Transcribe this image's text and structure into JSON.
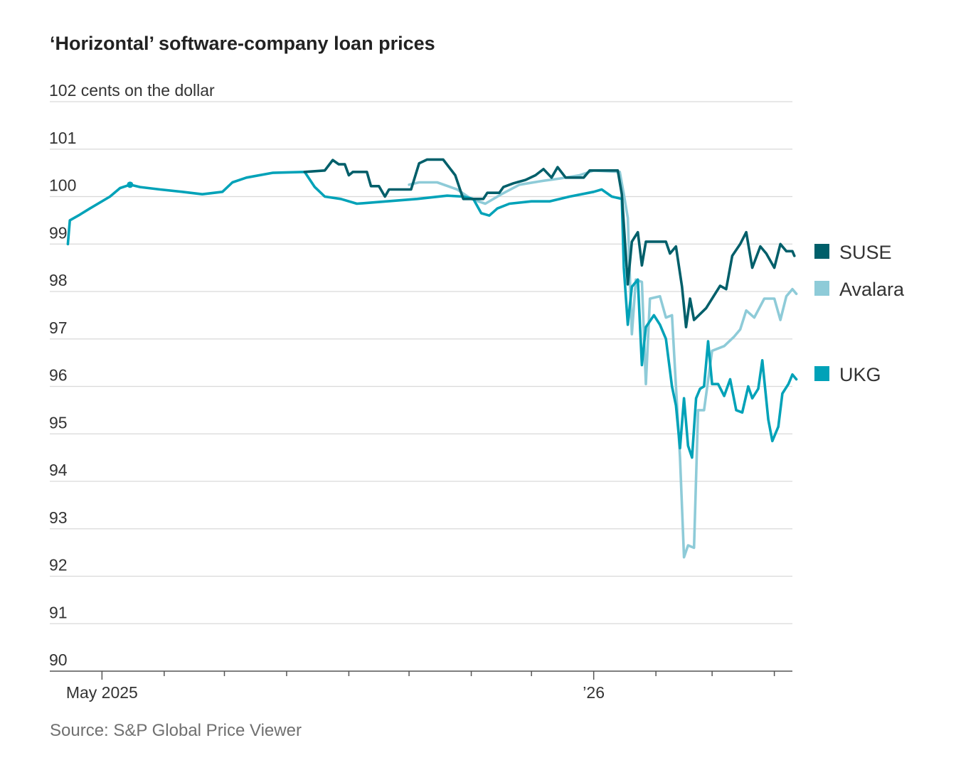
{
  "title": "‘Horizontal’ software-company loan prices",
  "source": "Source: S&P Global Price Viewer",
  "chart_data": {
    "type": "line",
    "title": "‘Horizontal’ software-company loan prices",
    "ylabel": "cents on the dollar",
    "ylim": [
      90,
      102
    ],
    "y_ticks": [
      90,
      91,
      92,
      93,
      94,
      95,
      96,
      97,
      98,
      99,
      100,
      101,
      102
    ],
    "top_tick_label": "102 cents on the dollar",
    "x_tick_labels": [
      {
        "label": "May 2025",
        "x": "2025-05-01"
      },
      {
        "label": "’26",
        "x": "2026-01-01"
      }
    ],
    "x_minor_ticks": [
      "2025-06-01",
      "2025-07-01",
      "2025-08-01",
      "2025-09-01",
      "2025-10-01",
      "2025-11-01",
      "2025-12-01",
      "2026-02-01",
      "2026-03-01",
      "2026-04-01"
    ],
    "xlim": [
      "2025-04-05",
      "2026-04-10"
    ],
    "grid": true,
    "legend_position": "right",
    "series": [
      {
        "name": "SUSE",
        "color": "#005f6a",
        "points": [
          [
            "2025-08-10",
            100.52
          ],
          [
            "2025-08-20",
            100.55
          ],
          [
            "2025-08-24",
            100.77
          ],
          [
            "2025-08-27",
            100.68
          ],
          [
            "2025-08-30",
            100.68
          ],
          [
            "2025-09-01",
            100.45
          ],
          [
            "2025-09-03",
            100.52
          ],
          [
            "2025-09-10",
            100.52
          ],
          [
            "2025-09-12",
            100.22
          ],
          [
            "2025-09-16",
            100.22
          ],
          [
            "2025-09-19",
            100.0
          ],
          [
            "2025-09-21",
            100.15
          ],
          [
            "2025-10-02",
            100.15
          ],
          [
            "2025-10-06",
            100.7
          ],
          [
            "2025-10-10",
            100.78
          ],
          [
            "2025-10-18",
            100.78
          ],
          [
            "2025-10-24",
            100.45
          ],
          [
            "2025-10-28",
            99.95
          ],
          [
            "2025-11-07",
            99.95
          ],
          [
            "2025-11-09",
            100.08
          ],
          [
            "2025-11-15",
            100.08
          ],
          [
            "2025-11-17",
            100.2
          ],
          [
            "2025-11-22",
            100.28
          ],
          [
            "2025-11-28",
            100.35
          ],
          [
            "2025-12-03",
            100.45
          ],
          [
            "2025-12-07",
            100.58
          ],
          [
            "2025-12-11",
            100.4
          ],
          [
            "2025-12-14",
            100.62
          ],
          [
            "2025-12-18",
            100.4
          ],
          [
            "2025-12-27",
            100.4
          ],
          [
            "2025-12-30",
            100.55
          ],
          [
            "2026-01-13",
            100.55
          ],
          [
            "2026-01-15",
            100.05
          ],
          [
            "2026-01-18",
            98.15
          ],
          [
            "2026-01-20",
            99.05
          ],
          [
            "2026-01-23",
            99.25
          ],
          [
            "2026-01-25",
            98.55
          ],
          [
            "2026-01-27",
            99.05
          ],
          [
            "2026-02-06",
            99.05
          ],
          [
            "2026-02-08",
            98.8
          ],
          [
            "2026-02-11",
            98.95
          ],
          [
            "2026-02-14",
            98.1
          ],
          [
            "2026-02-16",
            97.25
          ],
          [
            "2026-02-18",
            97.85
          ],
          [
            "2026-02-20",
            97.4
          ],
          [
            "2026-02-26",
            97.65
          ],
          [
            "2026-03-05",
            98.12
          ],
          [
            "2026-03-08",
            98.05
          ],
          [
            "2026-03-11",
            98.75
          ],
          [
            "2026-03-15",
            99.0
          ],
          [
            "2026-03-18",
            99.25
          ],
          [
            "2026-03-21",
            98.5
          ],
          [
            "2026-03-25",
            98.95
          ],
          [
            "2026-03-28",
            98.8
          ],
          [
            "2026-04-01",
            98.5
          ],
          [
            "2026-04-04",
            99.0
          ],
          [
            "2026-04-07",
            98.85
          ],
          [
            "2026-04-10",
            98.85
          ],
          [
            "2026-04-11",
            98.75
          ]
        ]
      },
      {
        "name": "Avalara",
        "color": "#8ecbd8",
        "points": [
          [
            "2025-10-01",
            100.25
          ],
          [
            "2025-10-06",
            100.3
          ],
          [
            "2025-10-15",
            100.3
          ],
          [
            "2025-10-25",
            100.15
          ],
          [
            "2025-11-01",
            99.95
          ],
          [
            "2025-11-08",
            99.85
          ],
          [
            "2025-11-16",
            100.05
          ],
          [
            "2025-11-25",
            100.25
          ],
          [
            "2025-12-05",
            100.32
          ],
          [
            "2025-12-15",
            100.38
          ],
          [
            "2025-12-25",
            100.45
          ],
          [
            "2026-01-01",
            100.55
          ],
          [
            "2026-01-14",
            100.52
          ],
          [
            "2026-01-16",
            100.05
          ],
          [
            "2026-01-18",
            99.55
          ],
          [
            "2026-01-20",
            97.1
          ],
          [
            "2026-01-22",
            98.25
          ],
          [
            "2026-01-25",
            98.2
          ],
          [
            "2026-01-27",
            96.05
          ],
          [
            "2026-01-29",
            97.85
          ],
          [
            "2026-02-03",
            97.9
          ],
          [
            "2026-02-06",
            97.45
          ],
          [
            "2026-02-09",
            97.5
          ],
          [
            "2026-02-11",
            96.0
          ],
          [
            "2026-02-13",
            94.5
          ],
          [
            "2026-02-15",
            92.4
          ],
          [
            "2026-02-17",
            92.65
          ],
          [
            "2026-02-20",
            92.6
          ],
          [
            "2026-02-22",
            95.5
          ],
          [
            "2026-02-25",
            95.5
          ],
          [
            "2026-03-01",
            96.75
          ],
          [
            "2026-03-07",
            96.85
          ],
          [
            "2026-03-12",
            97.05
          ],
          [
            "2026-03-15",
            97.2
          ],
          [
            "2026-03-18",
            97.6
          ],
          [
            "2026-03-22",
            97.45
          ],
          [
            "2026-03-27",
            97.85
          ],
          [
            "2026-04-01",
            97.85
          ],
          [
            "2026-04-04",
            97.4
          ],
          [
            "2026-04-07",
            97.9
          ],
          [
            "2026-04-10",
            98.05
          ],
          [
            "2026-04-12",
            97.95
          ]
        ]
      },
      {
        "name": "UKG",
        "color": "#00a2b8",
        "points": [
          [
            "2025-04-14",
            99.0
          ],
          [
            "2025-04-15",
            99.5
          ],
          [
            "2025-04-20",
            99.62
          ],
          [
            "2025-04-25",
            99.75
          ],
          [
            "2025-05-05",
            100.0
          ],
          [
            "2025-05-10",
            100.18
          ],
          [
            "2025-05-15",
            100.25
          ],
          [
            "2025-05-20",
            100.2
          ],
          [
            "2025-05-30",
            100.15
          ],
          [
            "2025-06-10",
            100.1
          ],
          [
            "2025-06-20",
            100.05
          ],
          [
            "2025-06-30",
            100.1
          ],
          [
            "2025-07-05",
            100.3
          ],
          [
            "2025-07-12",
            100.4
          ],
          [
            "2025-07-25",
            100.5
          ],
          [
            "2025-08-10",
            100.52
          ],
          [
            "2025-08-15",
            100.2
          ],
          [
            "2025-08-20",
            100.0
          ],
          [
            "2025-08-28",
            99.95
          ],
          [
            "2025-09-05",
            99.85
          ],
          [
            "2025-09-20",
            99.9
          ],
          [
            "2025-10-05",
            99.95
          ],
          [
            "2025-10-20",
            100.02
          ],
          [
            "2025-10-28",
            100.0
          ],
          [
            "2025-11-02",
            99.95
          ],
          [
            "2025-11-06",
            99.65
          ],
          [
            "2025-11-10",
            99.6
          ],
          [
            "2025-11-14",
            99.75
          ],
          [
            "2025-11-20",
            99.85
          ],
          [
            "2025-12-01",
            99.9
          ],
          [
            "2025-12-10",
            99.9
          ],
          [
            "2025-12-20",
            100.0
          ],
          [
            "2026-01-01",
            100.1
          ],
          [
            "2026-01-05",
            100.15
          ],
          [
            "2026-01-10",
            100.0
          ],
          [
            "2026-01-15",
            99.95
          ],
          [
            "2026-01-16",
            98.5
          ],
          [
            "2026-01-18",
            97.3
          ],
          [
            "2026-01-20",
            98.1
          ],
          [
            "2026-01-23",
            98.25
          ],
          [
            "2026-01-25",
            96.45
          ],
          [
            "2026-01-27",
            97.25
          ],
          [
            "2026-01-31",
            97.5
          ],
          [
            "2026-02-03",
            97.3
          ],
          [
            "2026-02-06",
            97.0
          ],
          [
            "2026-02-09",
            96.0
          ],
          [
            "2026-02-11",
            95.6
          ],
          [
            "2026-02-13",
            94.7
          ],
          [
            "2026-02-15",
            95.75
          ],
          [
            "2026-02-17",
            94.75
          ],
          [
            "2026-02-19",
            94.5
          ],
          [
            "2026-02-21",
            95.75
          ],
          [
            "2026-02-23",
            95.95
          ],
          [
            "2026-02-25",
            96.0
          ],
          [
            "2026-02-27",
            96.95
          ],
          [
            "2026-03-01",
            96.05
          ],
          [
            "2026-03-04",
            96.05
          ],
          [
            "2026-03-07",
            95.8
          ],
          [
            "2026-03-10",
            96.15
          ],
          [
            "2026-03-13",
            95.5
          ],
          [
            "2026-03-16",
            95.45
          ],
          [
            "2026-03-19",
            96.0
          ],
          [
            "2026-03-21",
            95.75
          ],
          [
            "2026-03-24",
            95.95
          ],
          [
            "2026-03-26",
            96.55
          ],
          [
            "2026-03-29",
            95.3
          ],
          [
            "2026-03-31",
            94.85
          ],
          [
            "2026-04-03",
            95.15
          ],
          [
            "2026-04-05",
            95.85
          ],
          [
            "2026-04-08",
            96.05
          ],
          [
            "2026-04-10",
            96.25
          ],
          [
            "2026-04-12",
            96.15
          ]
        ]
      }
    ]
  }
}
